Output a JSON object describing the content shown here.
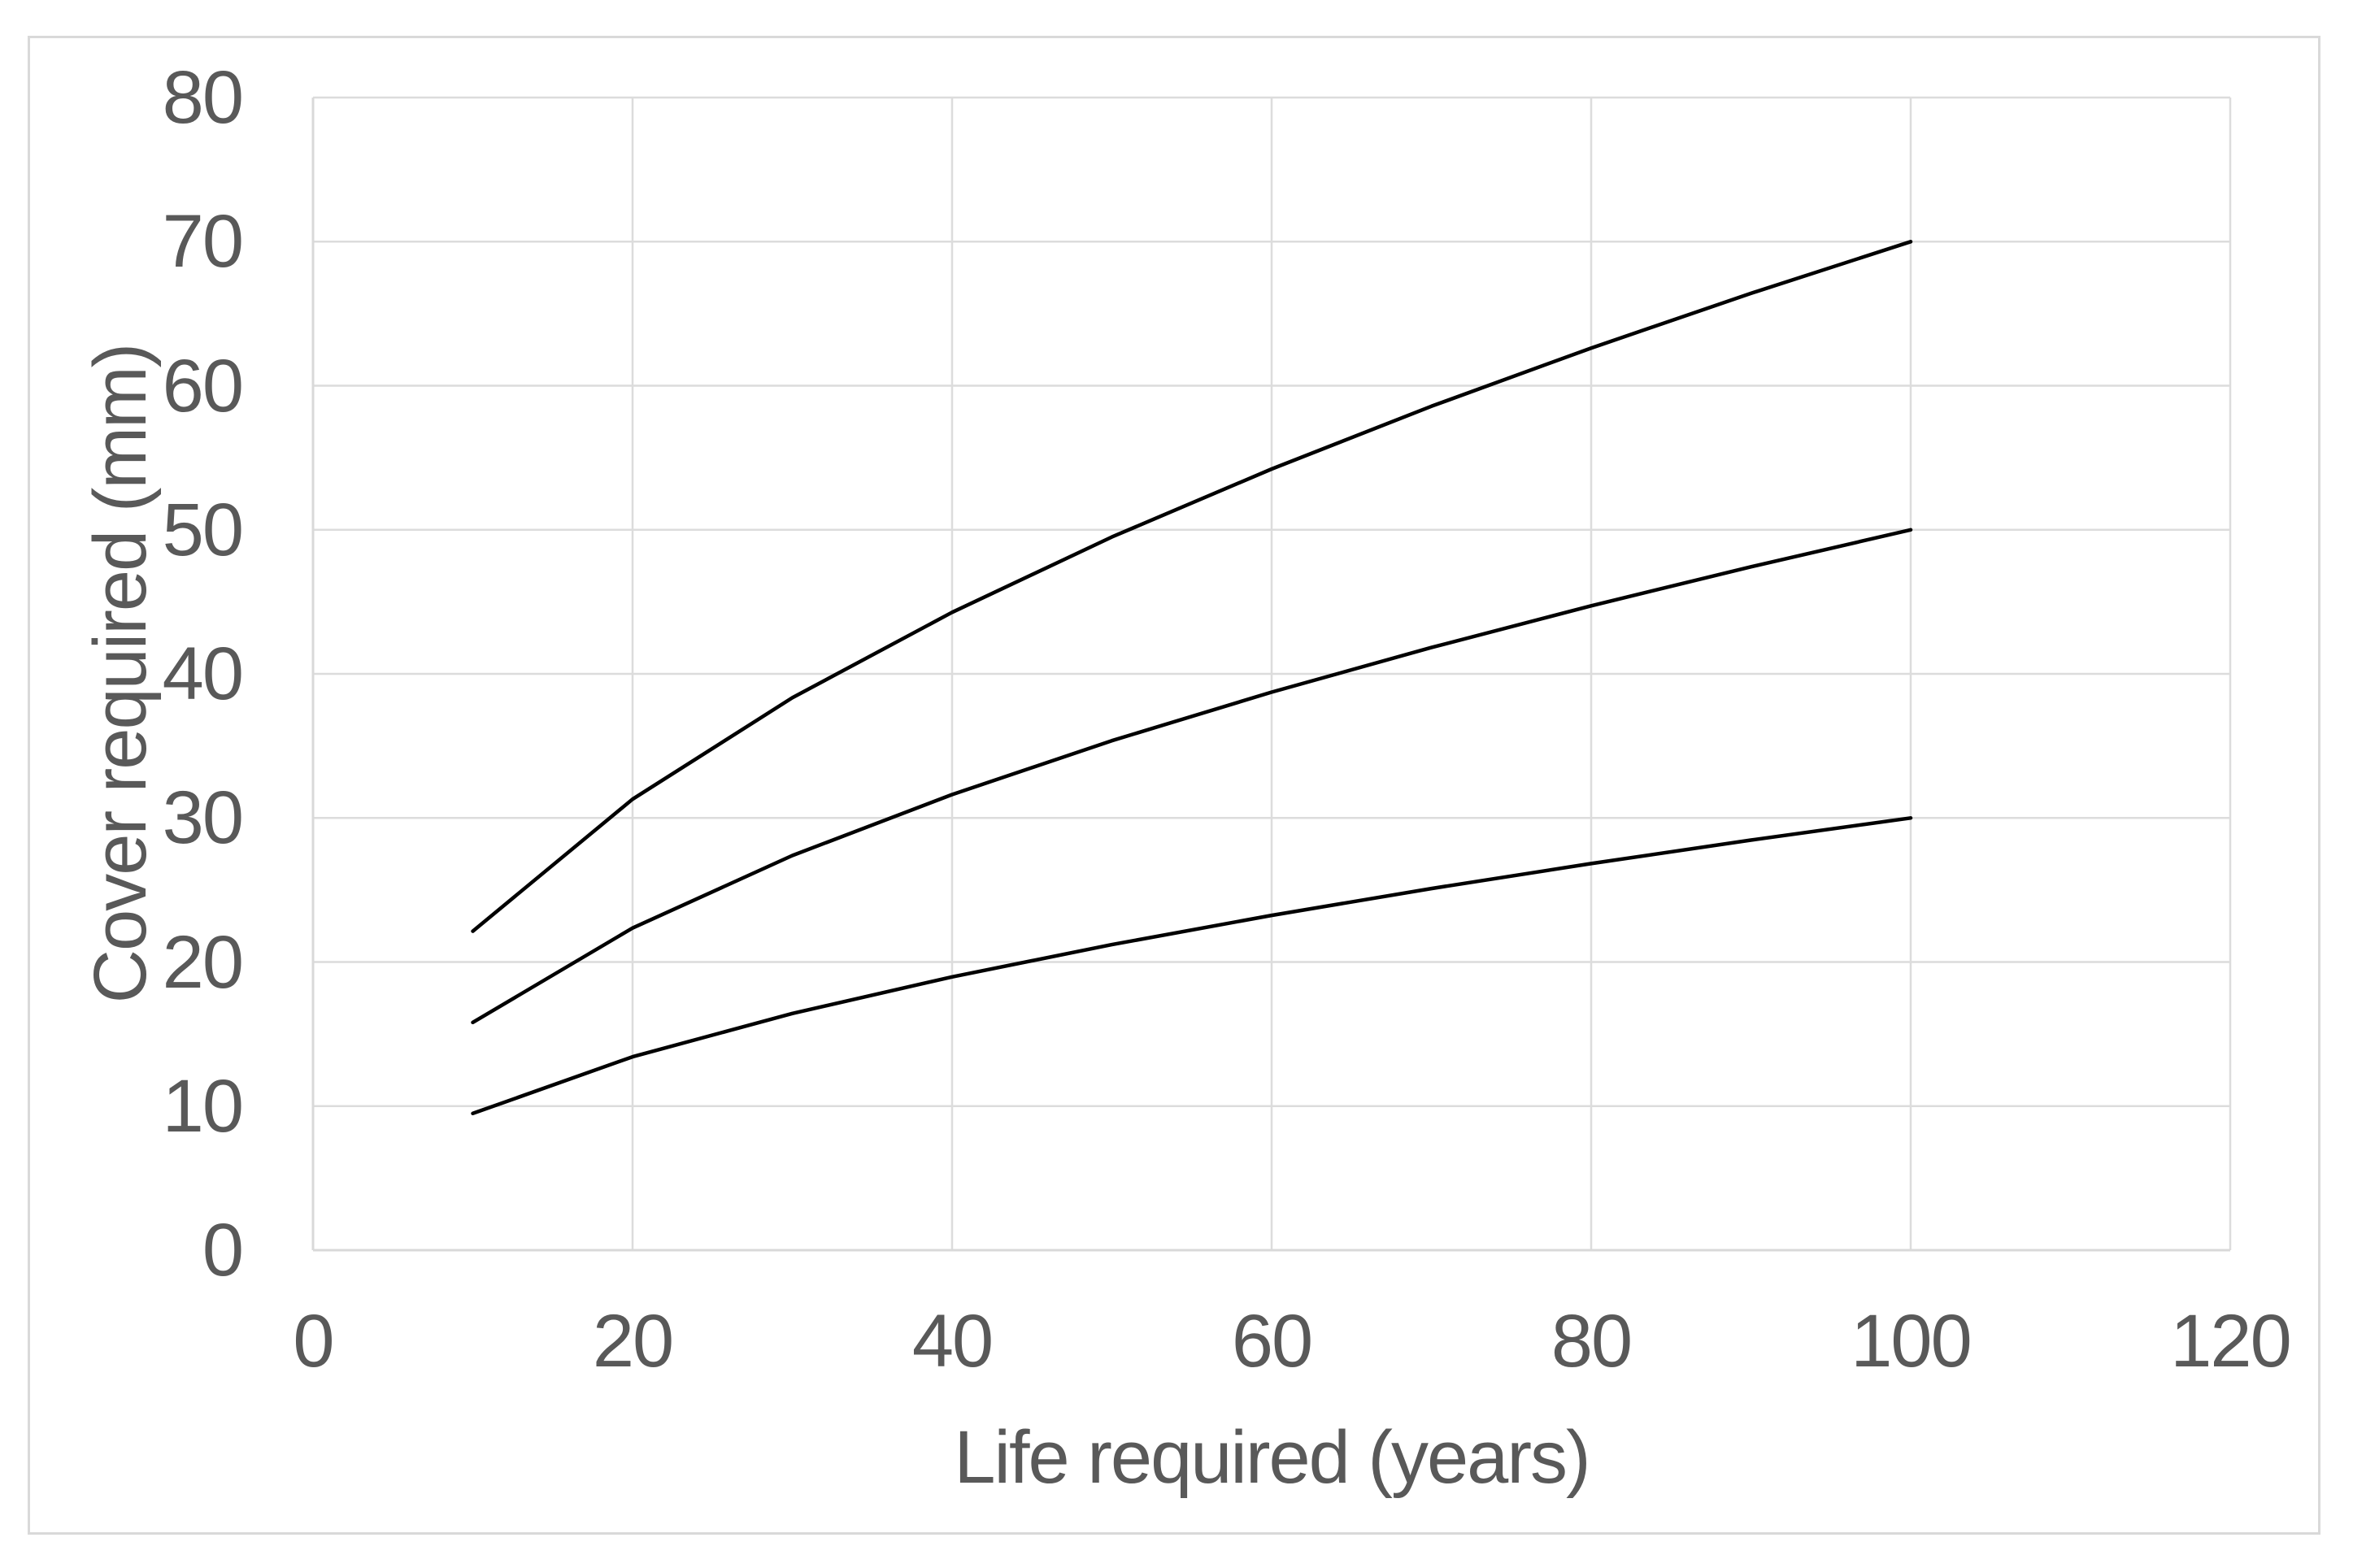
{
  "chart_data": {
    "type": "line",
    "title": "",
    "xlabel": "Life required (years)",
    "ylabel": "Cover required (mm)",
    "xlim": [
      0,
      120
    ],
    "ylim": [
      0,
      80
    ],
    "x_ticks": [
      0,
      20,
      40,
      60,
      80,
      100,
      120
    ],
    "y_ticks": [
      0,
      10,
      20,
      30,
      40,
      50,
      60,
      70,
      80
    ],
    "grid": true,
    "legend_position": "none",
    "x": [
      10,
      20,
      30,
      40,
      50,
      60,
      70,
      80,
      90,
      100
    ],
    "series": [
      {
        "values": [
          22.14,
          31.3,
          38.34,
          44.27,
          49.5,
          54.22,
          58.57,
          62.61,
          66.41,
          70.0
        ]
      },
      {
        "values": [
          15.81,
          22.36,
          27.39,
          31.62,
          35.36,
          38.73,
          41.83,
          44.72,
          47.43,
          50.0
        ]
      },
      {
        "values": [
          9.49,
          13.42,
          16.43,
          18.97,
          21.21,
          23.24,
          25.1,
          26.83,
          28.46,
          30.0
        ]
      }
    ],
    "colors": {
      "series_line": "#000000",
      "gridline": "#dcdcdc",
      "axis_line": "#d9d9d9",
      "labels": "#595959",
      "frame_border": "#d9d9d9",
      "background": "#ffffff"
    }
  }
}
